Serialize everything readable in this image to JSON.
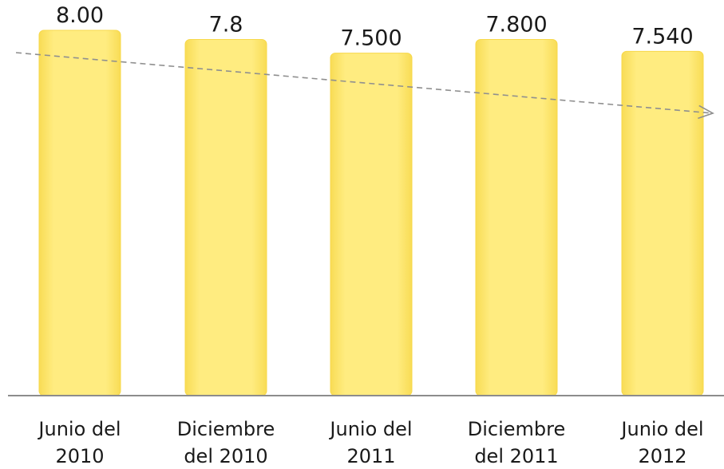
{
  "chart_data": {
    "type": "bar",
    "categories": [
      [
        "Junio del",
        "2010"
      ],
      [
        "Diciembre",
        "del 2010"
      ],
      [
        "Junio del",
        "2011"
      ],
      [
        "Diciembre",
        "del 2011"
      ],
      [
        "Junio del",
        "2012"
      ]
    ],
    "values": [
      8.0,
      7.8,
      7.5,
      7.8,
      7.54
    ],
    "data_labels": [
      "8.00",
      "7.8",
      "7.500",
      "7.800",
      "7.540"
    ],
    "ylim": [
      0,
      8.0
    ],
    "trendline": {
      "shown": true,
      "style": "dashed-arrow"
    },
    "grid": false,
    "legend": "none",
    "colors": {
      "bar": "#ffeb7a",
      "bar_edge": "#f7d84a",
      "axis": "#8c8c8c",
      "trend": "#8f8f8f"
    }
  }
}
